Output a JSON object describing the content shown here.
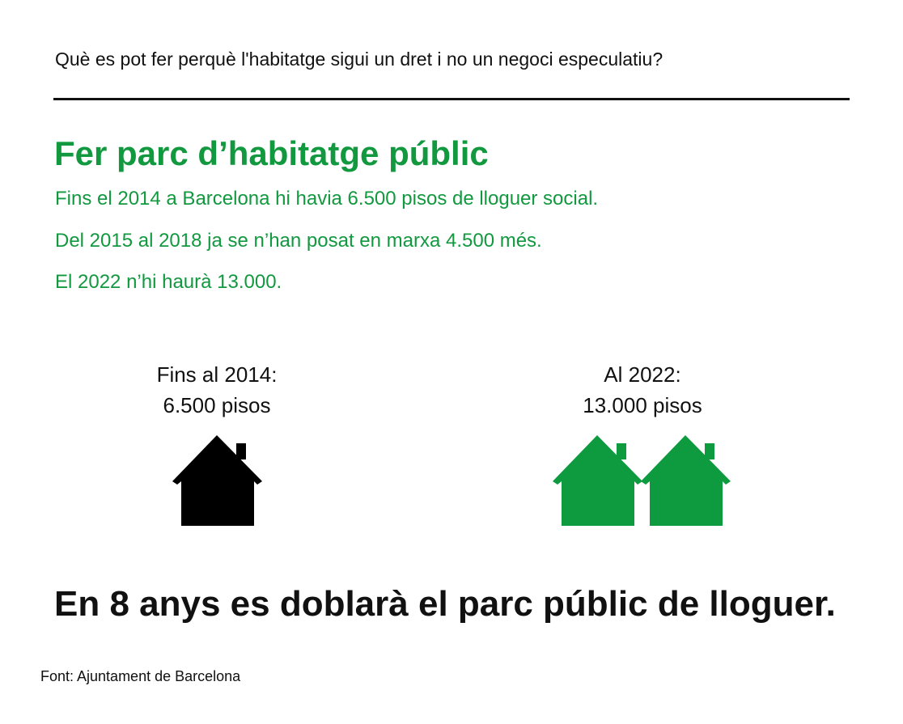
{
  "header": {
    "question": "Què es pot fer perquè l'habitatge sigui un dret i no un negoci especulatiu?"
  },
  "section": {
    "title": "Fer parc d’habitatge públic",
    "lines": [
      "Fins el 2014 a Barcelona hi havia 6.500 pisos de lloguer social.",
      "Del 2015 al 2018 ja se n’han posat en marxa 4.500 més.",
      "El 2022 n’hi haurà 13.000."
    ]
  },
  "comparison": [
    {
      "label": "Fins al 2014:",
      "value": "6.500 pisos"
    },
    {
      "label": "Al 2022:",
      "value": "13.000 pisos"
    }
  ],
  "conclusion": "En 8 anys es doblarà el parc públic de lloguer.",
  "source": "Font: Ajuntament de Barcelona"
}
